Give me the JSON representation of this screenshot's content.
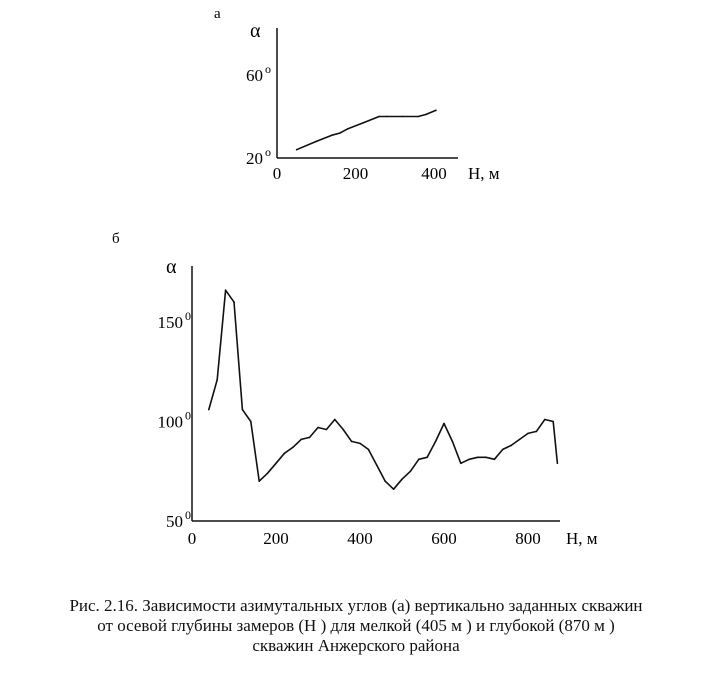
{
  "figure": {
    "caption_lines": [
      "Рис. 2.16. Зависимости азимутальных углов (а) вертикально заданных скважин",
      "от осевой глубины замеров (Н ) для мелкой (405 м ) и глубокой (870 м )",
      "скважин Анжерского района"
    ]
  },
  "chart_data": [
    {
      "type": "line",
      "panel_label": "а",
      "ylabel": "α",
      "xlabel": "H, м",
      "xlim": [
        0,
        420
      ],
      "ylim": [
        20,
        60
      ],
      "xticks": [
        0,
        200,
        400
      ],
      "xtick_labels": [
        "0",
        "200",
        "400"
      ],
      "yticks": [
        20,
        60
      ],
      "ytick_labels": [
        "20",
        "60"
      ],
      "ytick_suffix": "o",
      "grid": false,
      "series": [
        {
          "x": [
            50,
            100,
            140,
            160,
            180,
            220,
            260,
            280,
            320,
            360,
            380,
            405
          ],
          "y": [
            24,
            28,
            31,
            32,
            34,
            37,
            40,
            40,
            40,
            40,
            41,
            43
          ]
        }
      ]
    },
    {
      "type": "line",
      "panel_label": "б",
      "ylabel": "α",
      "xlabel": "H, м",
      "xlim": [
        0,
        900
      ],
      "ylim": [
        50,
        170
      ],
      "xticks": [
        0,
        200,
        400,
        600,
        800
      ],
      "xtick_labels": [
        "0",
        "200",
        "400",
        "600",
        "800"
      ],
      "yticks": [
        50,
        100,
        150
      ],
      "ytick_labels": [
        "50",
        "100",
        "150"
      ],
      "ytick_suffix": "0",
      "grid": false,
      "series": [
        {
          "x": [
            40,
            60,
            80,
            100,
            120,
            140,
            160,
            180,
            200,
            220,
            240,
            260,
            280,
            300,
            320,
            340,
            360,
            380,
            400,
            420,
            440,
            460,
            480,
            500,
            520,
            540,
            560,
            580,
            600,
            620,
            640,
            660,
            680,
            700,
            720,
            740,
            760,
            780,
            800,
            820,
            840,
            860,
            870
          ],
          "y": [
            106,
            121,
            166,
            160,
            106,
            100,
            70,
            74,
            79,
            84,
            87,
            91,
            92,
            97,
            96,
            101,
            96,
            90,
            89,
            86,
            78,
            70,
            66,
            71,
            75,
            81,
            82,
            90,
            99,
            90,
            79,
            81,
            82,
            82,
            81,
            86,
            88,
            91,
            94,
            95,
            101,
            100,
            79
          ]
        }
      ]
    }
  ]
}
